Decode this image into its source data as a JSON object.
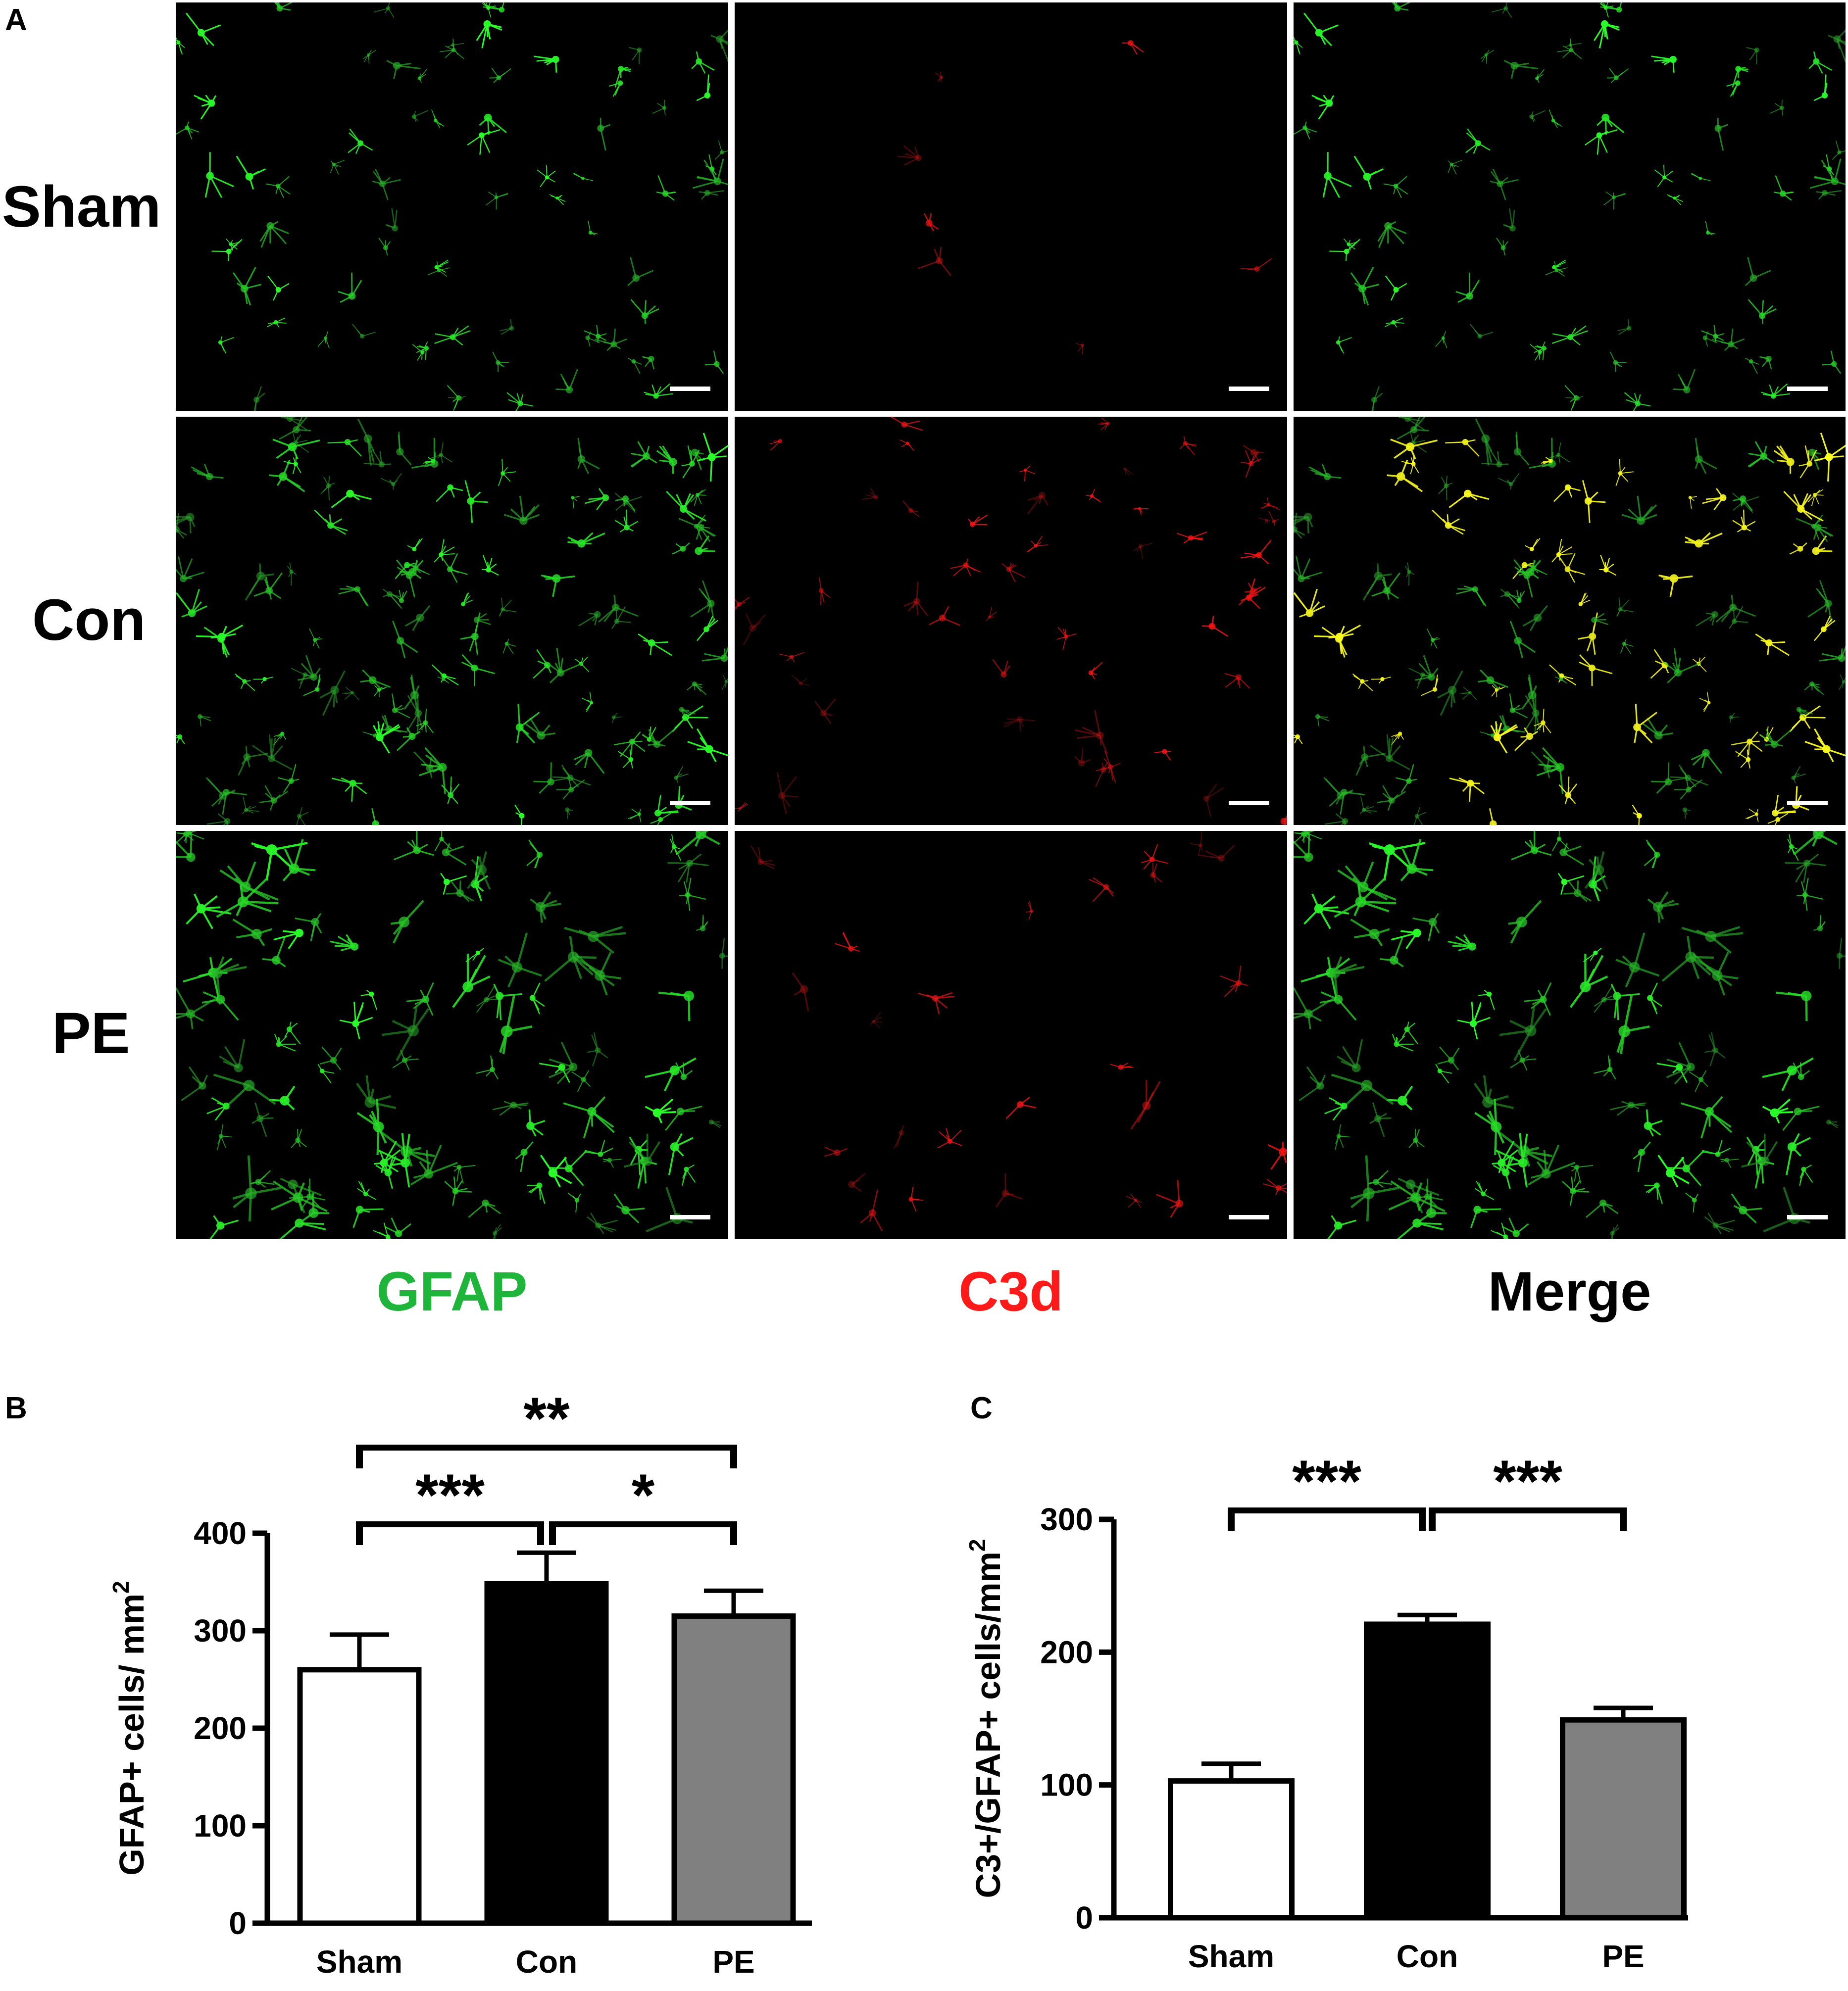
{
  "figure": {
    "panel_a_letter": "A",
    "panel_b_letter": "B",
    "panel_c_letter": "C",
    "rows": [
      "Sham",
      "Con",
      "PE"
    ],
    "columns": [
      {
        "label": "GFAP",
        "color": "#1eb53a"
      },
      {
        "label": "C3d",
        "color": "#ff1a1a"
      },
      {
        "label": "Merge",
        "color": "#000000"
      }
    ]
  },
  "chart_data": [
    {
      "type": "bar",
      "panel": "B",
      "categories": [
        "Sham",
        "Con",
        "PE"
      ],
      "values": [
        260,
        348,
        315
      ],
      "errors": [
        36,
        32,
        26
      ],
      "bar_colors": [
        "#ffffff",
        "#000000",
        "#808080"
      ],
      "ylabel": "GFAP+ cells/ mm²",
      "ylabel_text": "GFAP+ cells/ mm",
      "ylabel_sup": "2",
      "ylim": [
        0,
        400
      ],
      "yticks": [
        "0",
        "100",
        "200",
        "300",
        "400"
      ],
      "significance": [
        {
          "from": 0,
          "to": 1,
          "label": "***"
        },
        {
          "from": 1,
          "to": 2,
          "label": "*"
        },
        {
          "from": 0,
          "to": 2,
          "label": "**"
        }
      ]
    },
    {
      "type": "bar",
      "panel": "C",
      "categories": [
        "Sham",
        "Con",
        "PE"
      ],
      "values": [
        103,
        221,
        149
      ],
      "errors": [
        13,
        7,
        9
      ],
      "bar_colors": [
        "#ffffff",
        "#000000",
        "#808080"
      ],
      "ylabel": "C3+/GFAP+ cells/mm²",
      "ylabel_text": "C3+/GFAP+ cells/mm",
      "ylabel_sup": "2",
      "ylim": [
        0,
        300
      ],
      "yticks": [
        "0",
        "100",
        "200",
        "300"
      ],
      "significance": [
        {
          "from": 0,
          "to": 1,
          "label": "***"
        },
        {
          "from": 1,
          "to": 2,
          "label": "***"
        }
      ]
    }
  ]
}
